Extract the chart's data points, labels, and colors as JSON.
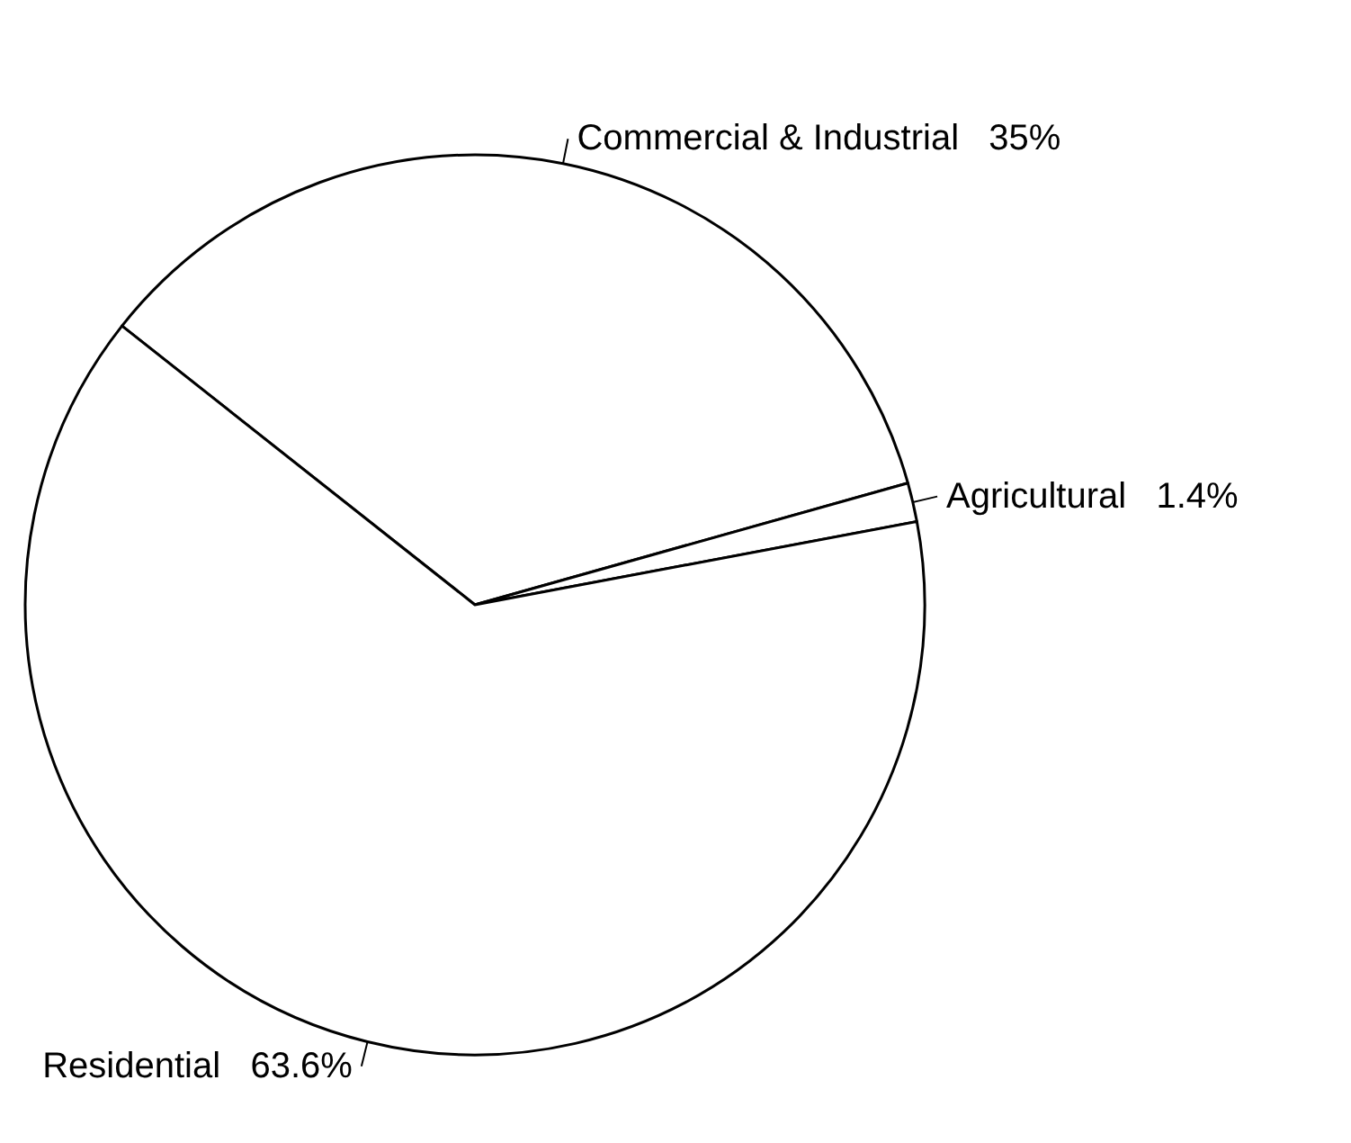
{
  "chart_data": {
    "type": "pie",
    "categories": [
      "Commercial & Industrial",
      "Agricultural",
      "Residential"
    ],
    "values": [
      35,
      1.4,
      63.6
    ],
    "value_labels": [
      "35%",
      "1.4%",
      "63.6%"
    ],
    "colors": [
      "#ffffff",
      "#ffffff",
      "#ffffff"
    ],
    "legend": false
  }
}
